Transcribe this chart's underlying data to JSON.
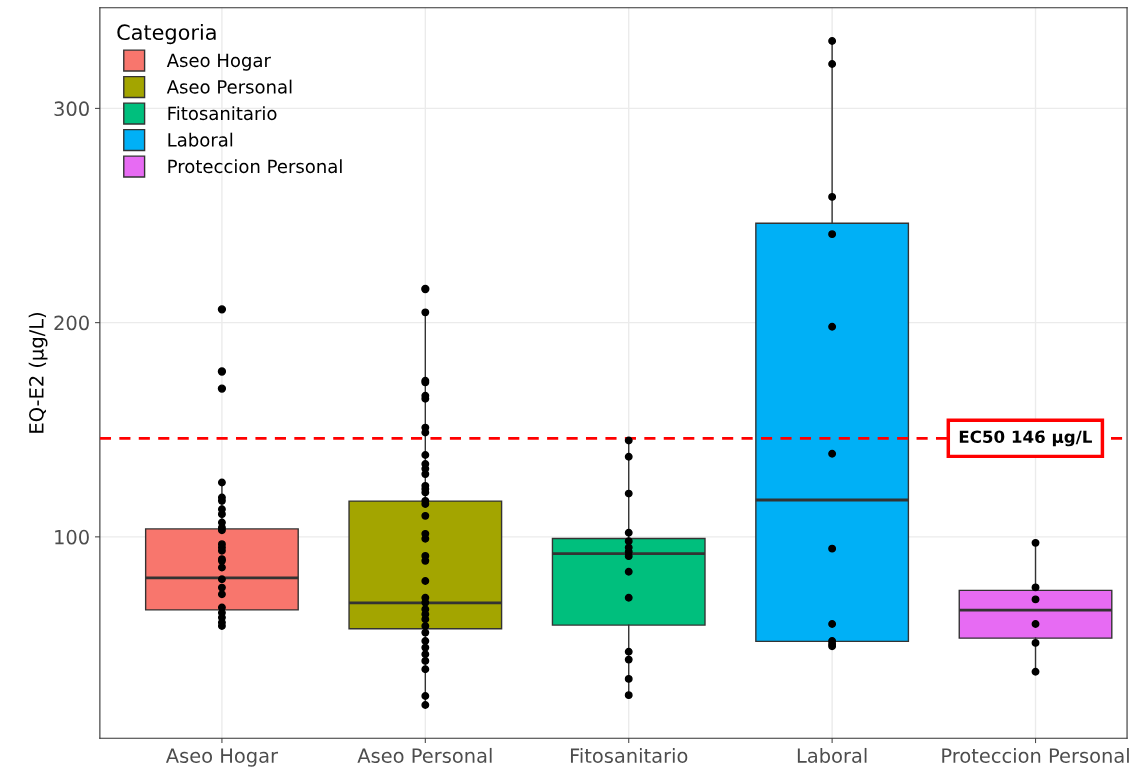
{
  "chart_data": {
    "type": "box",
    "categories": [
      "Aseo Hogar",
      "Aseo Personal",
      "Fitosanitario",
      "Laboral",
      "Proteccion Personal"
    ],
    "series": [
      {
        "name": "Aseo Hogar",
        "color": "#f8766d",
        "boxes": [
          {
            "low": 58.4,
            "q1": 65.9,
            "median": 80.8,
            "q3": 103.7,
            "high": 125.4,
            "outliers": [
              206.2,
              177.2,
              169.2
            ]
          },
          null,
          null,
          null,
          null
        ]
      },
      {
        "name": "Aseo Personal",
        "color": "#a3a500",
        "boxes": [
          null,
          {
            "low": 21.5,
            "q1": 57.1,
            "median": 69.2,
            "q3": 116.7,
            "high": 204.8,
            "outliers": [
              215.7
            ]
          },
          null,
          null,
          null
        ]
      },
      {
        "name": "Fitosanitario",
        "color": "#00bf7d",
        "boxes": [
          null,
          null,
          {
            "low": 26.1,
            "q1": 58.8,
            "median": 92.2,
            "q3": 99.2,
            "high": 145
          },
          null,
          null
        ]
      },
      {
        "name": "Laboral",
        "color": "#00b0f6",
        "boxes": [
          null,
          null,
          null,
          {
            "low": 48.9,
            "q1": 51.2,
            "median": 117.2,
            "q3": 246.4,
            "high": 331.5
          },
          null
        ]
      },
      {
        "name": "Proteccion Personal",
        "color": "#e76bf3",
        "boxes": [
          null,
          null,
          null,
          null,
          {
            "low": 37,
            "q1": 52.7,
            "median": 65.8,
            "q3": 75,
            "high": 97.2
          }
        ]
      },
      {
        "type": "scatter",
        "color": "#000000",
        "marker": "circle",
        "x": [
          "Aseo Hogar",
          "Aseo Hogar",
          "Aseo Hogar",
          "Aseo Hogar",
          "Aseo Hogar",
          "Aseo Hogar",
          "Aseo Hogar",
          "Aseo Hogar",
          "Aseo Hogar",
          "Aseo Hogar",
          "Aseo Hogar",
          "Aseo Hogar",
          "Aseo Hogar",
          "Aseo Hogar",
          "Aseo Hogar",
          "Aseo Hogar",
          "Aseo Hogar",
          "Aseo Hogar",
          "Aseo Hogar",
          "Aseo Hogar",
          "Aseo Hogar",
          "Aseo Hogar",
          "Aseo Personal",
          "Aseo Personal",
          "Aseo Personal",
          "Aseo Personal",
          "Aseo Personal",
          "Aseo Personal",
          "Aseo Personal",
          "Aseo Personal",
          "Aseo Personal",
          "Aseo Personal",
          "Aseo Personal",
          "Aseo Personal",
          "Aseo Personal",
          "Aseo Personal",
          "Aseo Personal",
          "Aseo Personal",
          "Aseo Personal",
          "Aseo Personal",
          "Aseo Personal",
          "Aseo Personal",
          "Aseo Personal",
          "Aseo Personal",
          "Aseo Personal",
          "Aseo Personal",
          "Aseo Personal",
          "Aseo Personal",
          "Aseo Personal",
          "Aseo Personal",
          "Aseo Personal",
          "Aseo Personal",
          "Aseo Personal",
          "Aseo Personal",
          "Aseo Personal",
          "Aseo Personal",
          "Aseo Personal",
          "Aseo Personal",
          "Fitosanitario",
          "Fitosanitario",
          "Fitosanitario",
          "Fitosanitario",
          "Fitosanitario",
          "Fitosanitario",
          "Fitosanitario",
          "Fitosanitario",
          "Fitosanitario",
          "Fitosanitario",
          "Fitosanitario",
          "Fitosanitario",
          "Fitosanitario",
          "Fitosanitario",
          "Laboral",
          "Laboral",
          "Laboral",
          "Laboral",
          "Laboral",
          "Laboral",
          "Laboral",
          "Laboral",
          "Laboral",
          "Laboral",
          "Laboral",
          "Proteccion Personal",
          "Proteccion Personal",
          "Proteccion Personal",
          "Proteccion Personal",
          "Proteccion Personal",
          "Proteccion Personal"
        ],
        "values": [
          125.4,
          118.4,
          116.8,
          112.9,
          110.6,
          106.7,
          104.3,
          103.1,
          96.6,
          95,
          93.5,
          89.6,
          88.8,
          85.7,
          80.2,
          76.3,
          73.2,
          67,
          64.6,
          62.3,
          60,
          58.4,
          204.8,
          172.9,
          172.1,
          165.9,
          164.5,
          151,
          148.7,
          138.2,
          134,
          131.8,
          129.3,
          123.8,
          122.3,
          120.7,
          116.8,
          115.3,
          109.8,
          101.4,
          99.1,
          91.1,
          88.8,
          79.4,
          71.6,
          69.3,
          66.2,
          63.9,
          61.5,
          58.4,
          55.3,
          51.4,
          48.3,
          45.2,
          42.1,
          38.2,
          25.7,
          21.5,
          145,
          137.4,
          120.2,
          101.9,
          98,
          95,
          93,
          91,
          83.7,
          71.6,
          46.4,
          42.7,
          33.7,
          26.1,
          331.5,
          320.7,
          258.7,
          241.3,
          198.1,
          138.8,
          94.5,
          59.3,
          51.4,
          50,
          48.9,
          97.2,
          76.4,
          70.8,
          59.3,
          50.5,
          37
        ]
      }
    ],
    "ylabel": "EQ-E2 (µg/L)",
    "legend_title": "Categoria",
    "legend": "top left",
    "ylim": [
      6,
      347
    ],
    "yticks": [
      100,
      200,
      300
    ],
    "grid": true,
    "ref_lines": [
      {
        "axis": "y",
        "value": 146,
        "label": "EC50 146 µg/L",
        "color": "#ff0000",
        "line_style": "dashed"
      }
    ]
  }
}
